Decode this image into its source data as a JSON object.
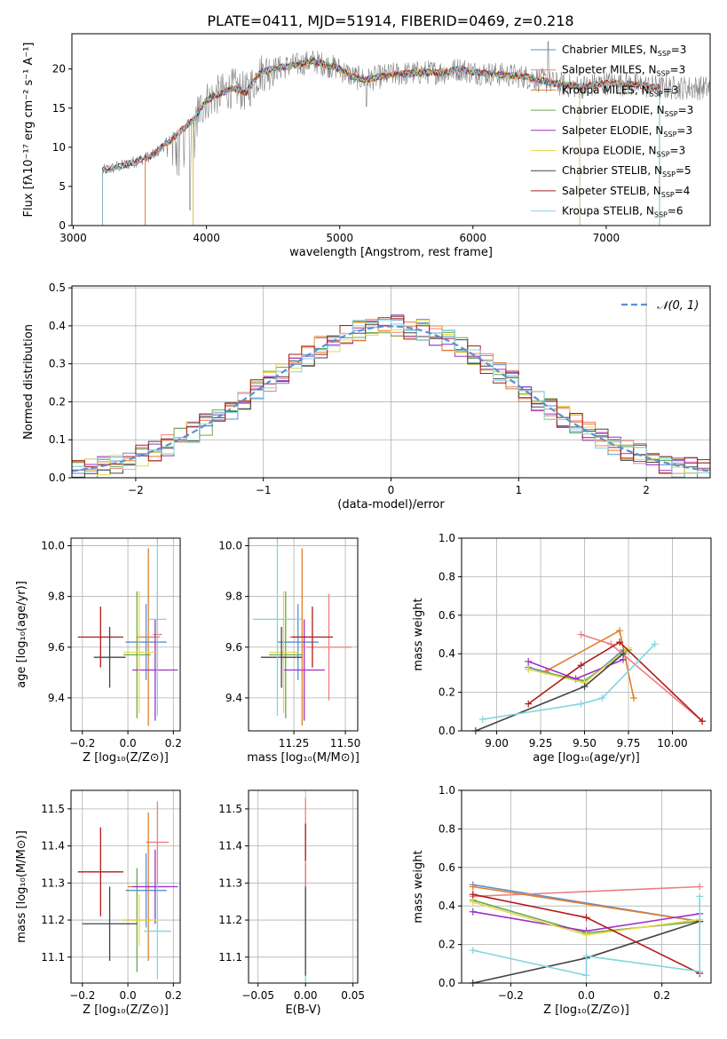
{
  "figure": {
    "title": "PLATE=0411, MJD=51914, FIBERID=0469, z=0.218"
  },
  "colors": {
    "Chabrier MILES": "#5b8fd1",
    "Salpeter MILES": "#ef7f7f",
    "Kroupa MILES": "#e07e2c",
    "Chabrier ELODIE": "#6aa84f",
    "Salpeter ELODIE": "#9b30c9",
    "Kroupa ELODIE": "#e6d94a",
    "Chabrier STELIB": "#444444",
    "Salpeter STELIB": "#b01c1c",
    "Kroupa STELIB": "#7fd6dd",
    "normal": "#5b8fd1",
    "grid": "#b0b0b0",
    "spectrum": "#808080"
  },
  "chart_data": [
    {
      "type": "line",
      "id": "spectrum",
      "xlabel": "wavelength [Angstrom, rest frame]",
      "ylabel": "Flux [fλ10⁻¹⁷ erg cm⁻² s⁻¹ A⁻¹]",
      "xlim": [
        2990,
        7780
      ],
      "ylim": [
        0,
        24.5
      ],
      "xticks": [
        "3000",
        "4000",
        "5000",
        "6000",
        "7000"
      ],
      "yticks": [
        "0",
        "5",
        "10",
        "15",
        "20"
      ],
      "legend_position": "top-right",
      "series": [
        {
          "name": "Chabrier MILES, N_SSP=3",
          "start": 3540,
          "end": 7400
        },
        {
          "name": "Salpeter MILES, N_SSP=3",
          "start": 3540,
          "end": 7400
        },
        {
          "name": "Kroupa MILES, N_SSP=3",
          "start": 3540,
          "end": 7400
        },
        {
          "name": "Chabrier ELODIE, N_SSP=3",
          "start": 3900,
          "end": 6800
        },
        {
          "name": "Salpeter ELODIE, N_SSP=3",
          "start": 3900,
          "end": 6800
        },
        {
          "name": "Kroupa ELODIE, N_SSP=3",
          "start": 3900,
          "end": 6800
        },
        {
          "name": "Chabrier STELIB, N_SSP=5",
          "start": 3220,
          "end": 7400
        },
        {
          "name": "Salpeter STELIB, N_SSP=4",
          "start": 3220,
          "end": 7400
        },
        {
          "name": "Kroupa STELIB, N_SSP=6",
          "start": 3220,
          "end": 7400
        }
      ],
      "continuum": [
        [
          3220,
          7.0
        ],
        [
          3400,
          7.8
        ],
        [
          3600,
          9.0
        ],
        [
          3700,
          10.5
        ],
        [
          3800,
          12.0
        ],
        [
          3900,
          13.5
        ],
        [
          4000,
          16.0
        ],
        [
          4100,
          16.8
        ],
        [
          4200,
          17.6
        ],
        [
          4300,
          17.0
        ],
        [
          4400,
          19.5
        ],
        [
          4500,
          20.0
        ],
        [
          4600,
          20.3
        ],
        [
          4700,
          20.6
        ],
        [
          4800,
          21.0
        ],
        [
          4900,
          20.5
        ],
        [
          5000,
          20.0
        ],
        [
          5100,
          19.0
        ],
        [
          5200,
          18.6
        ],
        [
          5300,
          19.0
        ],
        [
          5400,
          19.3
        ],
        [
          5500,
          19.4
        ],
        [
          5600,
          19.5
        ],
        [
          5700,
          19.6
        ],
        [
          5800,
          19.6
        ],
        [
          5900,
          20.0
        ],
        [
          6000,
          19.6
        ],
        [
          6200,
          19.3
        ],
        [
          6400,
          19.0
        ],
        [
          6600,
          18.2
        ],
        [
          6800,
          17.7
        ],
        [
          7000,
          18.2
        ],
        [
          7200,
          18.0
        ],
        [
          7400,
          17.6
        ]
      ]
    },
    {
      "type": "step",
      "id": "residuals",
      "xlabel": "(data-model)/error",
      "ylabel": "Normed distribution",
      "xlim": [
        -2.5,
        2.5
      ],
      "ylim": [
        0,
        0.505
      ],
      "xticks": [
        "−2",
        "−1",
        "0",
        "1",
        "2"
      ],
      "yticks": [
        "0.0",
        "0.1",
        "0.2",
        "0.3",
        "0.4",
        "0.5"
      ],
      "legend_position": "top-right",
      "curve_label": "𝒩(0, 1)",
      "bin_width": 0.1
    },
    {
      "type": "errorbar",
      "id": "age-vs-Z",
      "xlabel": "Z [log₁₀(Z/Z⊙)]",
      "ylabel": "age  [log₁₀(age/yr)]",
      "xlim": [
        -0.25,
        0.23
      ],
      "ylim": [
        9.27,
        10.03
      ],
      "xticks": [
        "−0.2",
        "0.0",
        "0.2"
      ],
      "yticks": [
        "9.4",
        "9.6",
        "9.8",
        "10.0"
      ],
      "points": [
        {
          "model": "Chabrier MILES",
          "x": 0.08,
          "xerr": 0.09,
          "y": 9.62,
          "yerr": 0.15
        },
        {
          "model": "Salpeter MILES",
          "x": 0.13,
          "xerr": 0.02,
          "y": 9.65,
          "yerr": 0.17
        },
        {
          "model": "Kroupa MILES",
          "x": 0.09,
          "xerr": 0.05,
          "y": 9.64,
          "yerr": 0.35
        },
        {
          "model": "Chabrier ELODIE",
          "x": 0.04,
          "xerr": 0.06,
          "y": 9.57,
          "yerr": 0.25
        },
        {
          "model": "Salpeter ELODIE",
          "x": 0.12,
          "xerr": 0.1,
          "y": 9.51,
          "yerr": 0.2
        },
        {
          "model": "Kroupa ELODIE",
          "x": 0.05,
          "xerr": 0.07,
          "y": 9.58,
          "yerr": 0.24
        },
        {
          "model": "Chabrier STELIB",
          "x": -0.08,
          "xerr": 0.07,
          "y": 9.56,
          "yerr": 0.12
        },
        {
          "model": "Salpeter STELIB",
          "x": -0.12,
          "xerr": 0.1,
          "y": 9.64,
          "yerr": 0.12
        },
        {
          "model": "Kroupa STELIB",
          "x": 0.13,
          "xerr": 0.04,
          "y": 9.71,
          "yerr": 0.38
        }
      ]
    },
    {
      "type": "errorbar",
      "id": "age-vs-mass",
      "xlabel": "mass [log₁₀(M/M⊙)]",
      "xlim": [
        11.03,
        11.56
      ],
      "ylim": [
        9.27,
        10.03
      ],
      "xticks": [
        "11.25",
        "11.50"
      ],
      "yticks": [
        "9.4",
        "9.6",
        "9.8",
        "10.0"
      ],
      "points": [
        {
          "model": "Chabrier MILES",
          "x": 11.27,
          "xerr": 0.1,
          "y": 9.62,
          "yerr": 0.15
        },
        {
          "model": "Salpeter MILES",
          "x": 11.42,
          "xerr": 0.11,
          "y": 9.6,
          "yerr": 0.21
        },
        {
          "model": "Kroupa MILES",
          "x": 11.29,
          "xerr": 0.06,
          "y": 9.64,
          "yerr": 0.35
        },
        {
          "model": "Chabrier ELODIE",
          "x": 11.21,
          "xerr": 0.08,
          "y": 9.57,
          "yerr": 0.25
        },
        {
          "model": "Salpeter ELODIE",
          "x": 11.3,
          "xerr": 0.1,
          "y": 9.51,
          "yerr": 0.2
        },
        {
          "model": "Kroupa ELODIE",
          "x": 11.2,
          "xerr": 0.07,
          "y": 9.58,
          "yerr": 0.24
        },
        {
          "model": "Chabrier STELIB",
          "x": 11.19,
          "xerr": 0.1,
          "y": 9.56,
          "yerr": 0.12
        },
        {
          "model": "Salpeter STELIB",
          "x": 11.34,
          "xerr": 0.1,
          "y": 9.64,
          "yerr": 0.12
        },
        {
          "model": "Kroupa STELIB",
          "x": 11.17,
          "xerr": 0.12,
          "y": 9.71,
          "yerr": 0.38
        }
      ]
    },
    {
      "type": "line",
      "id": "weight-vs-age",
      "xlabel": "age  [log₁₀(age/yr)]",
      "ylabel": "mass weight",
      "xlim": [
        8.8,
        10.22
      ],
      "ylim": [
        0,
        1
      ],
      "xticks": [
        "9.00",
        "9.25",
        "9.50",
        "9.75",
        "10.00"
      ],
      "yticks": [
        "0.0",
        "0.2",
        "0.4",
        "0.6",
        "0.8",
        "1.0"
      ],
      "series": [
        {
          "model": "Chabrier MILES",
          "points": [
            [
              9.18,
              0.33
            ],
            [
              9.5,
              0.25
            ],
            [
              9.72,
              0.42
            ]
          ]
        },
        {
          "model": "Salpeter MILES",
          "points": [
            [
              9.48,
              0.5
            ],
            [
              9.65,
              0.45
            ],
            [
              10.17,
              0.05
            ]
          ]
        },
        {
          "model": "Kroupa MILES",
          "points": [
            [
              9.28,
              0.31
            ],
            [
              9.7,
              0.52
            ],
            [
              9.78,
              0.17
            ]
          ]
        },
        {
          "model": "Chabrier ELODIE",
          "points": [
            [
              9.18,
              0.32
            ],
            [
              9.5,
              0.26
            ],
            [
              9.75,
              0.42
            ]
          ]
        },
        {
          "model": "Salpeter ELODIE",
          "points": [
            [
              9.18,
              0.36
            ],
            [
              9.45,
              0.27
            ],
            [
              9.72,
              0.37
            ]
          ]
        },
        {
          "model": "Kroupa ELODIE",
          "points": [
            [
              9.18,
              0.32
            ],
            [
              9.5,
              0.25
            ],
            [
              9.75,
              0.43
            ]
          ]
        },
        {
          "model": "Chabrier STELIB",
          "points": [
            [
              8.88,
              0.0
            ],
            [
              9.5,
              0.23
            ],
            [
              9.72,
              0.4
            ]
          ]
        },
        {
          "model": "Salpeter STELIB",
          "points": [
            [
              9.18,
              0.14
            ],
            [
              9.48,
              0.34
            ],
            [
              9.7,
              0.46
            ],
            [
              10.17,
              0.05
            ]
          ]
        },
        {
          "model": "Kroupa STELIB",
          "points": [
            [
              8.92,
              0.06
            ],
            [
              9.48,
              0.14
            ],
            [
              9.6,
              0.17
            ],
            [
              9.9,
              0.45
            ]
          ]
        }
      ]
    },
    {
      "type": "errorbar",
      "id": "mass-vs-Z",
      "xlabel": "Z [log₁₀(Z/Z⊙)]",
      "ylabel": "mass [log₁₀(M/M⊙)]",
      "xlim": [
        -0.25,
        0.23
      ],
      "ylim": [
        11.03,
        11.55
      ],
      "xticks": [
        "−0.2",
        "0.0",
        "0.2"
      ],
      "yticks": [
        "11.1",
        "11.2",
        "11.3",
        "11.4",
        "11.5"
      ],
      "points": [
        {
          "model": "Chabrier MILES",
          "x": 0.08,
          "xerr": 0.09,
          "y": 11.28,
          "yerr": 0.1
        },
        {
          "model": "Salpeter MILES",
          "x": 0.13,
          "xerr": 0.05,
          "y": 11.41,
          "yerr": 0.11
        },
        {
          "model": "Kroupa MILES",
          "x": 0.09,
          "xerr": 0.09,
          "y": 11.29,
          "yerr": 0.2
        },
        {
          "model": "Chabrier ELODIE",
          "x": 0.04,
          "xerr": 0.06,
          "y": 11.2,
          "yerr": 0.14
        },
        {
          "model": "Salpeter ELODIE",
          "x": 0.12,
          "xerr": 0.1,
          "y": 11.29,
          "yerr": 0.1
        },
        {
          "model": "Kroupa ELODIE",
          "x": 0.05,
          "xerr": 0.08,
          "y": 11.2,
          "yerr": 0.07
        },
        {
          "model": "Chabrier STELIB",
          "x": -0.08,
          "xerr": 0.12,
          "y": 11.19,
          "yerr": 0.1
        },
        {
          "model": "Salpeter STELIB",
          "x": -0.12,
          "xerr": 0.1,
          "y": 11.33,
          "yerr": 0.12
        },
        {
          "model": "Kroupa STELIB",
          "x": 0.13,
          "xerr": 0.06,
          "y": 11.17,
          "yerr": 0.13
        }
      ]
    },
    {
      "type": "errorbar",
      "id": "mass-vs-EBV",
      "xlabel": "E(B-V)",
      "xlim": [
        -0.06,
        0.055
      ],
      "ylim": [
        11.03,
        11.55
      ],
      "xticks": [
        "−0.05",
        "0.00",
        "0.05"
      ],
      "yticks": [
        "11.1",
        "11.2",
        "11.3",
        "11.4",
        "11.5"
      ],
      "points": [
        {
          "model": "Kroupa STELIB",
          "x": 0.0,
          "xerr": 0.0,
          "y": 11.2,
          "yerr": 0.17
        },
        {
          "model": "Chabrier STELIB",
          "x": 0.0,
          "xerr": 0.0,
          "y": 11.2,
          "yerr": 0.15
        },
        {
          "model": "Salpeter MILES",
          "x": 0.0,
          "xerr": 0.0,
          "y": 11.41,
          "yerr": 0.12
        },
        {
          "model": "Salpeter STELIB",
          "x": 0.0,
          "xerr": 0.0,
          "y": 11.41,
          "yerr": 0.05
        }
      ]
    },
    {
      "type": "line",
      "id": "weight-vs-Z",
      "xlabel": "Z [log₁₀(Z/Z⊙)]",
      "ylabel": "mass weight",
      "xlim": [
        -0.33,
        0.33
      ],
      "ylim": [
        0,
        1
      ],
      "xticks": [
        "−0.2",
        "0.0",
        "0.2"
      ],
      "yticks": [
        "0.0",
        "0.2",
        "0.4",
        "0.6",
        "0.8",
        "1.0"
      ],
      "series": [
        {
          "model": "Chabrier MILES",
          "points": [
            [
              -0.3,
              0.51
            ],
            [
              0.3,
              0.32
            ]
          ]
        },
        {
          "model": "Salpeter MILES",
          "points": [
            [
              -0.3,
              0.45
            ],
            [
              0.3,
              0.5
            ]
          ]
        },
        {
          "model": "Kroupa MILES",
          "points": [
            [
              -0.3,
              0.5
            ],
            [
              0.3,
              0.32
            ]
          ]
        },
        {
          "model": "Chabrier ELODIE",
          "points": [
            [
              -0.3,
              0.43
            ],
            [
              0.0,
              0.26
            ],
            [
              0.3,
              0.32
            ]
          ]
        },
        {
          "model": "Salpeter ELODIE",
          "points": [
            [
              -0.3,
              0.37
            ],
            [
              0.0,
              0.27
            ],
            [
              0.3,
              0.36
            ]
          ]
        },
        {
          "model": "Kroupa ELODIE",
          "points": [
            [
              -0.3,
              0.42
            ],
            [
              0.0,
              0.25
            ],
            [
              0.3,
              0.33
            ]
          ]
        },
        {
          "model": "Chabrier STELIB",
          "points": [
            [
              -0.3,
              0.0
            ],
            [
              0.0,
              0.13
            ],
            [
              0.3,
              0.32
            ]
          ]
        },
        {
          "model": "Salpeter STELIB",
          "points": [
            [
              -0.3,
              0.46
            ],
            [
              0.0,
              0.34
            ],
            [
              0.3,
              0.05
            ]
          ]
        },
        {
          "model": "Kroupa STELIB",
          "points": [
            [
              -0.3,
              0.17
            ],
            [
              0.0,
              0.04
            ],
            [
              0.0,
              0.14
            ],
            [
              0.3,
              0.06
            ],
            [
              0.3,
              0.45
            ]
          ]
        }
      ]
    }
  ]
}
